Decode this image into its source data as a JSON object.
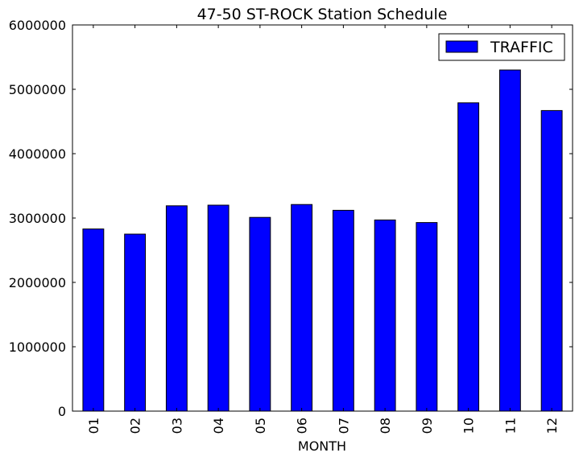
{
  "chart_data": {
    "type": "bar",
    "title": "47-50 ST-ROCK Station Schedule",
    "xlabel": "MONTH",
    "ylabel": "",
    "categories": [
      "01",
      "02",
      "03",
      "04",
      "05",
      "06",
      "07",
      "08",
      "09",
      "10",
      "11",
      "12"
    ],
    "series": [
      {
        "name": "TRAFFIC",
        "color": "#0000ff",
        "values": [
          2830000,
          2750000,
          3190000,
          3200000,
          3010000,
          3210000,
          3120000,
          2970000,
          2930000,
          4790000,
          5300000,
          4670000
        ]
      }
    ],
    "ylim": [
      0,
      6000000
    ],
    "yticks": [
      "0",
      "1000000",
      "2000000",
      "3000000",
      "4000000",
      "5000000",
      "6000000"
    ],
    "grid": false,
    "legend_position": "top-right"
  }
}
